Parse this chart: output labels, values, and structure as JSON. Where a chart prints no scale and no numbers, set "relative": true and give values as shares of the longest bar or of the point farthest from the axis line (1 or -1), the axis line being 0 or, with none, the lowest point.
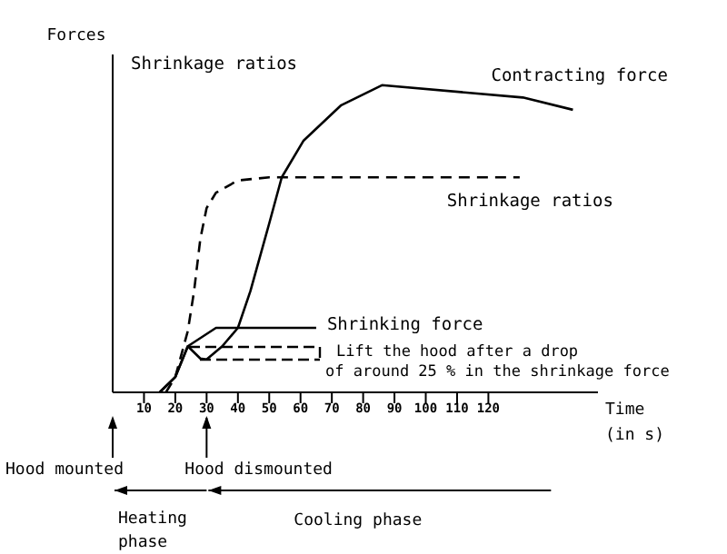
{
  "chart_data": {
    "type": "line",
    "relative": true,
    "ylabel": "Forces",
    "xlabel": "Time (in s)",
    "xlim": [
      0,
      155
    ],
    "xticks": [
      10,
      20,
      30,
      40,
      50,
      60,
      70,
      80,
      90,
      100,
      110,
      120
    ],
    "marker": "none",
    "series": [
      {
        "name": "Contracting force",
        "color": "#000000",
        "line_style": "solid",
        "x": [
          15,
          20,
          24,
          28,
          30,
          35,
          40,
          44,
          50,
          54,
          61,
          73,
          86,
          131,
          147
        ],
        "values": [
          0,
          0.05,
          0.15,
          0.11,
          0.107,
          0.15,
          0.21,
          0.33,
          0.55,
          0.7,
          0.82,
          0.935,
          1,
          0.96,
          0.92
        ]
      },
      {
        "name": "Shrinkage ratios",
        "color": "#000000",
        "line_style": "dashed",
        "x": [
          17,
          20,
          24,
          26,
          28,
          30,
          33,
          40,
          50,
          130
        ],
        "values": [
          0,
          0.05,
          0.2,
          0.33,
          0.5,
          0.6,
          0.65,
          0.69,
          0.7,
          0.7
        ]
      },
      {
        "name": "Shrinking force",
        "color": "#000000",
        "line_style": "solid",
        "x": [
          15,
          20,
          24,
          27,
          33,
          65
        ],
        "values": [
          0,
          0.05,
          0.15,
          0.17,
          0.21,
          0.21
        ]
      }
    ],
    "annotations": [
      "Shrinkage ratios",
      "Lift the hood after a drop of around 25 % in the shrinkage force",
      "Hood mounted",
      "Hood dismounted",
      "Heating phase",
      "Cooling phase"
    ]
  }
}
